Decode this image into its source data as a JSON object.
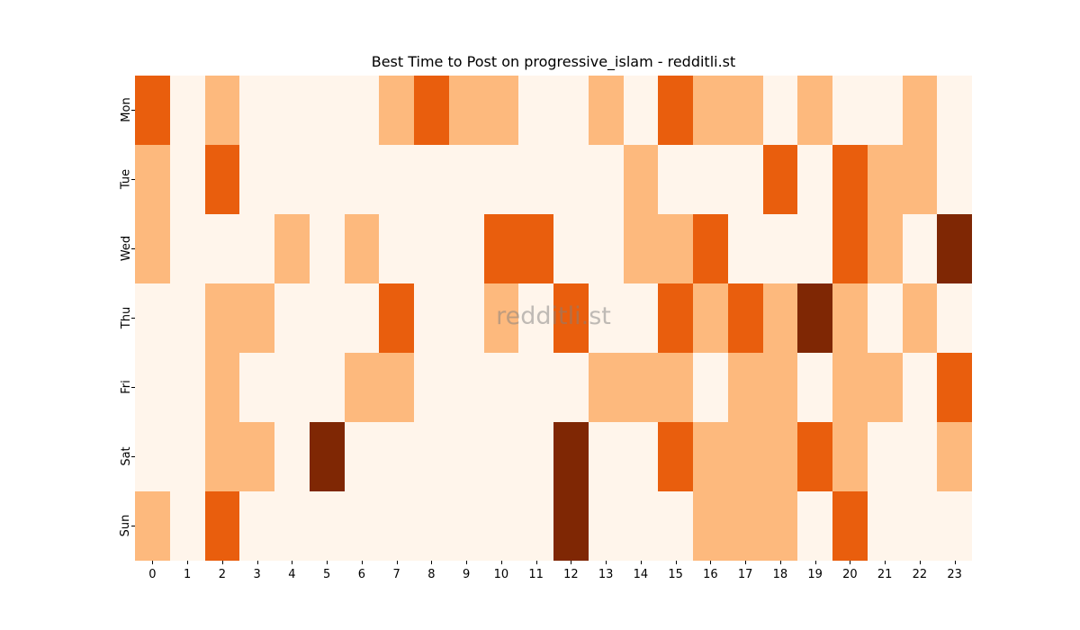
{
  "chart_data": {
    "type": "heatmap",
    "title": "Best Time to Post on progressive_islam - redditli.st",
    "xlabel": "",
    "ylabel": "",
    "x": [
      "0",
      "1",
      "2",
      "3",
      "4",
      "5",
      "6",
      "7",
      "8",
      "9",
      "10",
      "11",
      "12",
      "13",
      "14",
      "15",
      "16",
      "17",
      "18",
      "19",
      "20",
      "21",
      "22",
      "23"
    ],
    "y": [
      "Mon",
      "Tue",
      "Wed",
      "Thu",
      "Fri",
      "Sat",
      "Sun"
    ],
    "colormap": "Oranges",
    "level_colors": [
      "#fff5eb",
      "#fdb97d",
      "#e95e0d",
      "#7f2704"
    ],
    "values": [
      [
        2,
        0,
        1,
        0,
        0,
        0,
        0,
        1,
        2,
        1,
        1,
        0,
        0,
        1,
        0,
        2,
        1,
        1,
        0,
        1,
        0,
        0,
        1,
        0
      ],
      [
        1,
        0,
        2,
        0,
        0,
        0,
        0,
        0,
        0,
        0,
        0,
        0,
        0,
        0,
        1,
        0,
        0,
        0,
        2,
        0,
        2,
        1,
        1,
        0
      ],
      [
        1,
        0,
        0,
        0,
        1,
        0,
        1,
        0,
        0,
        0,
        2,
        2,
        0,
        0,
        1,
        1,
        2,
        0,
        0,
        0,
        2,
        1,
        0,
        3
      ],
      [
        0,
        0,
        1,
        1,
        0,
        0,
        0,
        2,
        0,
        0,
        1,
        0,
        2,
        0,
        0,
        2,
        1,
        2,
        1,
        3,
        1,
        0,
        1,
        0
      ],
      [
        0,
        0,
        1,
        0,
        0,
        0,
        1,
        1,
        0,
        0,
        0,
        0,
        0,
        1,
        1,
        1,
        0,
        1,
        1,
        0,
        1,
        1,
        0,
        2
      ],
      [
        0,
        0,
        1,
        1,
        0,
        3,
        0,
        0,
        0,
        0,
        0,
        0,
        3,
        0,
        0,
        2,
        1,
        1,
        1,
        2,
        1,
        0,
        0,
        1
      ],
      [
        1,
        0,
        2,
        0,
        0,
        0,
        0,
        0,
        0,
        0,
        0,
        0,
        3,
        0,
        0,
        0,
        1,
        1,
        1,
        0,
        2,
        0,
        0,
        0
      ]
    ],
    "grid": false,
    "legend": "none",
    "watermark": "redditli.st"
  }
}
